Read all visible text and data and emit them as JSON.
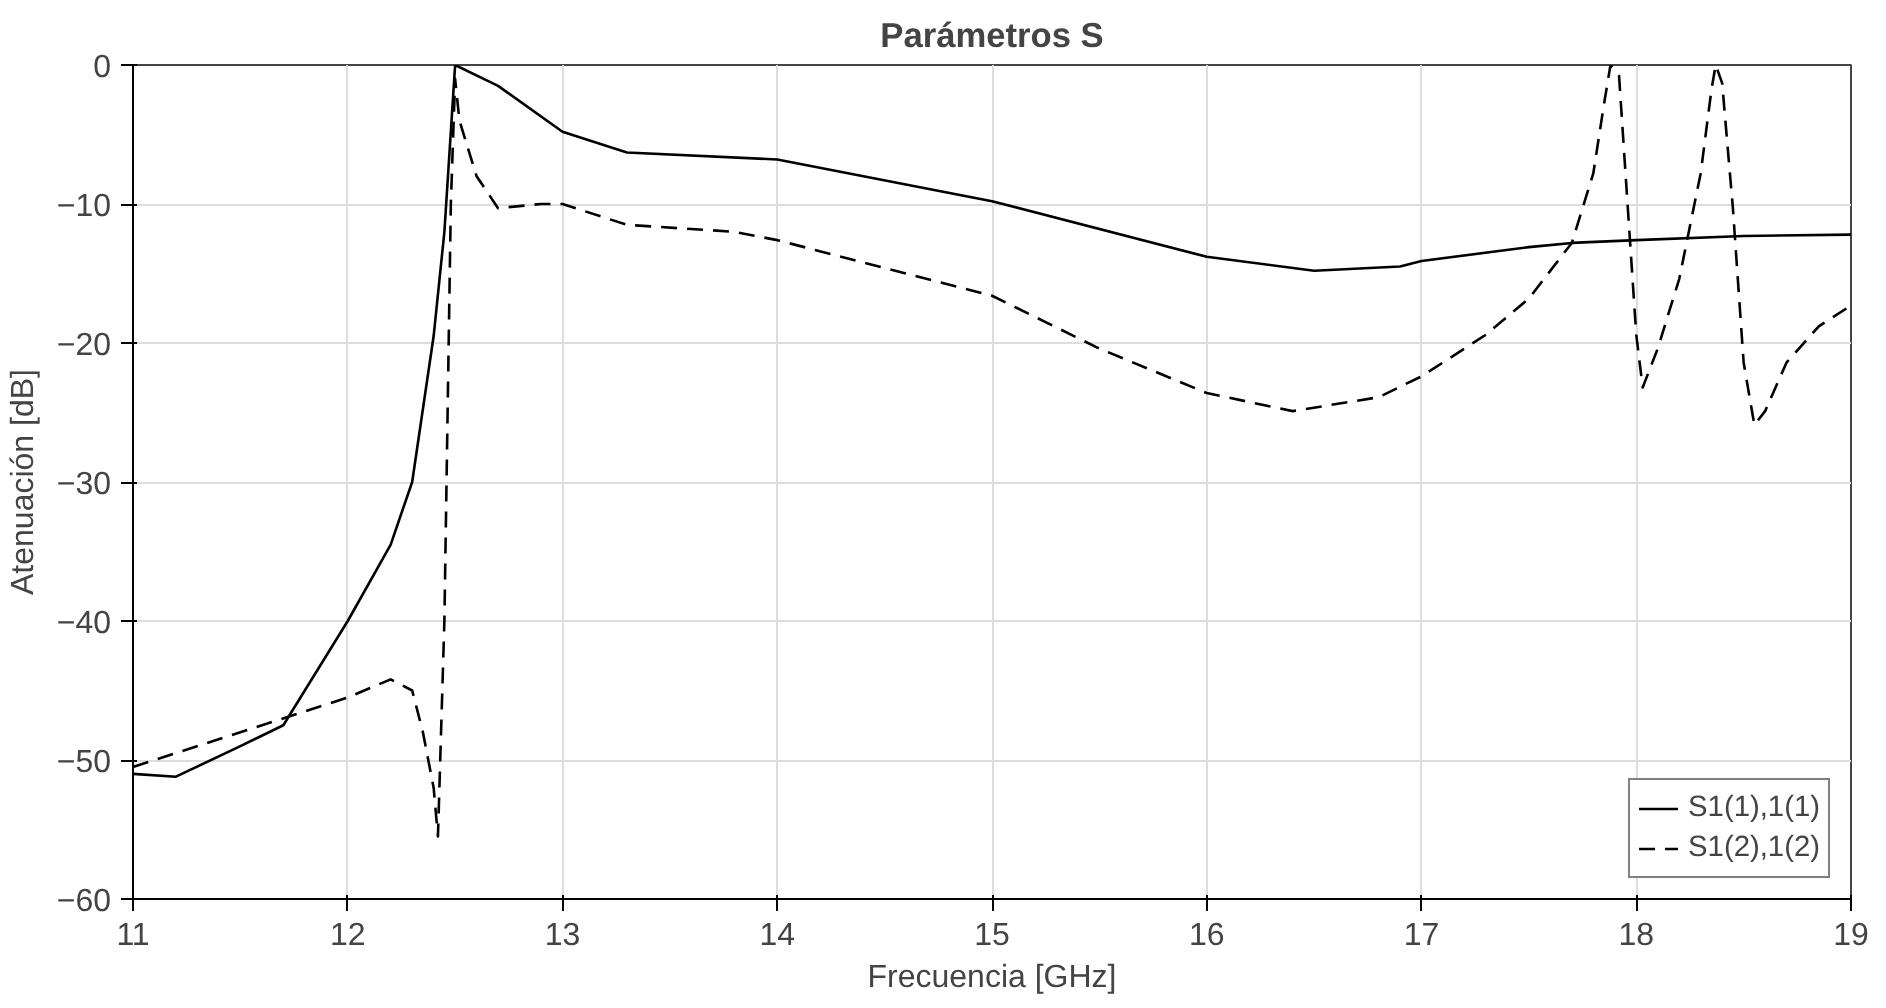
{
  "chart_data": {
    "type": "line",
    "title": "Parámetros S",
    "xlabel": "Frecuencia [GHz]",
    "ylabel": "Atenuación [dB]",
    "xlim": [
      11,
      19
    ],
    "ylim": [
      -60,
      0
    ],
    "xticks": [
      11,
      12,
      13,
      14,
      15,
      16,
      17,
      18,
      19
    ],
    "yticks": [
      -60,
      -50,
      -40,
      -30,
      -20,
      -10,
      0
    ],
    "grid": true,
    "legend": "bottom right",
    "marker": "none",
    "series": [
      {
        "name": "S1(1),1(1)",
        "color": "#000000",
        "line_style": "solid",
        "x": [
          11,
          11.2,
          11.5,
          11.7,
          12.0,
          12.2,
          12.3,
          12.4,
          12.45,
          12.5,
          12.7,
          13.0,
          13.3,
          14,
          15,
          16,
          16.5,
          16.9,
          17,
          17.5,
          17.7,
          18,
          18.5,
          19
        ],
        "values": [
          -51,
          -51.2,
          -49,
          -47.5,
          -40,
          -34.5,
          -30,
          -19.5,
          -12,
          0,
          -1.5,
          -4.8,
          -6.3,
          -6.8,
          -9.8,
          -13.8,
          -14.8,
          -14.5,
          -14.1,
          -13.1,
          -12.8,
          -12.6,
          -12.3,
          -12.2
        ]
      },
      {
        "name": "S1(2),1(2)",
        "color": "#000000",
        "line_style": "dashed",
        "x": [
          11,
          11.5,
          12,
          12.2,
          12.3,
          12.35,
          12.4,
          12.42,
          12.45,
          12.48,
          12.5,
          12.52,
          12.6,
          12.7,
          12.9,
          13.0,
          13.3,
          13.8,
          14,
          15,
          15.5,
          16,
          16.4,
          16.8,
          17,
          17.3,
          17.5,
          17.7,
          17.8,
          17.85,
          17.88,
          17.92,
          17.95,
          18.0,
          18.03,
          18.1,
          18.2,
          18.3,
          18.35,
          18.37,
          18.4,
          18.45,
          18.5,
          18.55,
          18.6,
          18.7,
          18.85,
          19
        ],
        "values": [
          -50.5,
          -48,
          -45.5,
          -44.2,
          -45,
          -48,
          -52,
          -55.5,
          -40,
          -10,
          -1,
          -4,
          -8,
          -10.3,
          -10,
          -10,
          -11.5,
          -12,
          -12.6,
          -16.6,
          -20.4,
          -23.6,
          -24.9,
          -23.9,
          -22.4,
          -19.4,
          -16.8,
          -12.8,
          -7.8,
          -2.8,
          0,
          -0.8,
          -7.8,
          -19.4,
          -23.2,
          -20.4,
          -15.4,
          -7.8,
          -1.8,
          0,
          -1.3,
          -10.3,
          -21.4,
          -25.9,
          -24.9,
          -21.4,
          -18.8,
          -17.3
        ]
      }
    ]
  }
}
